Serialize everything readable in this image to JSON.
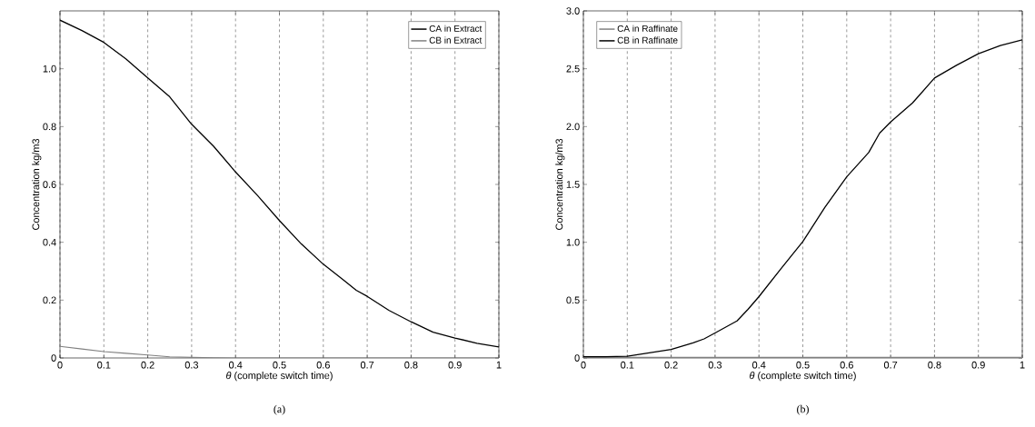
{
  "chart_data": [
    {
      "type": "line",
      "xlabel": "*θ* (complete switch time)",
      "ylabel": "Concentration kg/m3",
      "annotations": [
        "(a)"
      ],
      "xlim": [
        0,
        1
      ],
      "ylim": [
        0,
        1.2
      ],
      "xticks": [
        0,
        0.1,
        0.2,
        0.3,
        0.4,
        0.5,
        0.6,
        0.7,
        0.8,
        0.9,
        1
      ],
      "yticks": [
        0,
        0.2,
        0.4,
        0.6,
        0.8,
        {
          "value": 1,
          "label": "1.0"
        }
      ],
      "grid": "x",
      "legend": "top right",
      "line_style": "solid",
      "marker": "none",
      "x": [
        0,
        0.05,
        0.1,
        0.15,
        0.2,
        0.25,
        0.3,
        0.35,
        0.4,
        0.45,
        0.5,
        0.55,
        0.6,
        0.65,
        0.675,
        0.7,
        0.75,
        0.8,
        0.85,
        0.9,
        0.95,
        1
      ],
      "series": [
        {
          "name": "CA in Extract",
          "color": "#000000",
          "values": [
            1.168,
            1.132,
            1.091,
            1.034,
            0.968,
            0.903,
            0.808,
            0.732,
            0.643,
            0.562,
            0.475,
            0.394,
            0.324,
            0.265,
            0.234,
            0.213,
            0.164,
            0.125,
            0.089,
            0.069,
            0.051,
            0.038
          ]
        },
        {
          "name": "CB in Extract",
          "color": "#808080",
          "values": [
            0.04,
            0.031,
            0.022,
            0.016,
            0.01,
            0.004,
            0.002,
            0.001,
            0,
            0,
            0,
            0,
            0,
            0,
            0,
            0,
            0,
            0,
            0,
            0,
            0,
            0
          ]
        }
      ]
    },
    {
      "type": "line",
      "xlabel": "*θ* (complete switch time)",
      "ylabel": "Concentration kg/m3",
      "annotations": [
        "(b)"
      ],
      "xlim": [
        0,
        1
      ],
      "ylim": [
        0,
        3
      ],
      "xticks": [
        0,
        0.1,
        0.2,
        0.3,
        0.4,
        0.5,
        0.6,
        0.7,
        0.8,
        0.9,
        1
      ],
      "yticks": [
        0,
        0.5,
        {
          "value": 1,
          "label": "1.0"
        },
        1.5,
        {
          "value": 2,
          "label": "2.0"
        },
        2.5,
        {
          "value": 3,
          "label": "3.0"
        }
      ],
      "grid": "x",
      "legend": "top left",
      "line_style": "solid",
      "marker": "none",
      "x": [
        0,
        0.05,
        0.1,
        0.15,
        0.2,
        0.25,
        0.275,
        0.3,
        0.35,
        0.375,
        0.4,
        0.45,
        0.5,
        0.55,
        0.6,
        0.65,
        0.675,
        0.7,
        0.75,
        0.8,
        0.85,
        0.9,
        0.95,
        1
      ],
      "series": [
        {
          "name": "CA in Raffinate",
          "color": "#808080",
          "values": [
            0.005,
            0.005,
            0.005,
            0.005,
            0.005,
            0.005,
            0.005,
            0.005,
            0.005,
            0.005,
            0.005,
            0.005,
            0.005,
            0.005,
            0.005,
            0.005,
            0.005,
            0.005,
            0.005,
            0.005,
            0.005,
            0.005,
            0.005,
            0.005
          ]
        },
        {
          "name": "CB in Raffinate",
          "color": "#000000",
          "values": [
            0.01,
            0.01,
            0.014,
            0.045,
            0.073,
            0.13,
            0.165,
            0.216,
            0.32,
            0.42,
            0.53,
            0.77,
            1.006,
            1.3,
            1.566,
            1.776,
            1.944,
            2.04,
            2.205,
            2.42,
            2.53,
            2.63,
            2.7,
            2.75
          ]
        }
      ]
    }
  ]
}
